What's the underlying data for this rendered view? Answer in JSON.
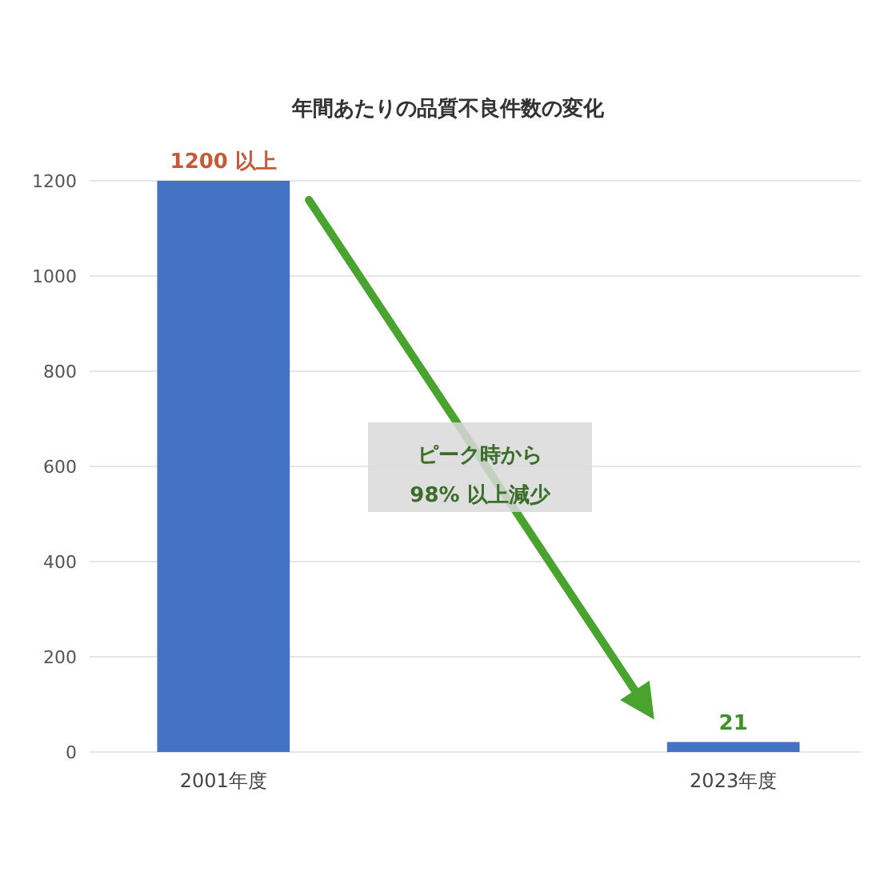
{
  "chart_data": {
    "type": "bar",
    "title": "年間あたりの品質不良件数の変化",
    "categories": [
      "2001年度",
      "2023年度"
    ],
    "values": [
      1200,
      21
    ],
    "color": "#4472c4",
    "value_labels": [
      "1200 以上",
      "21"
    ],
    "ylim": [
      0,
      1200
    ],
    "yticks": [
      0,
      200,
      400,
      600,
      800,
      1000,
      1200
    ],
    "grid": "y",
    "annotations": [
      "ピーク時から\n98% 以上減少"
    ]
  }
}
